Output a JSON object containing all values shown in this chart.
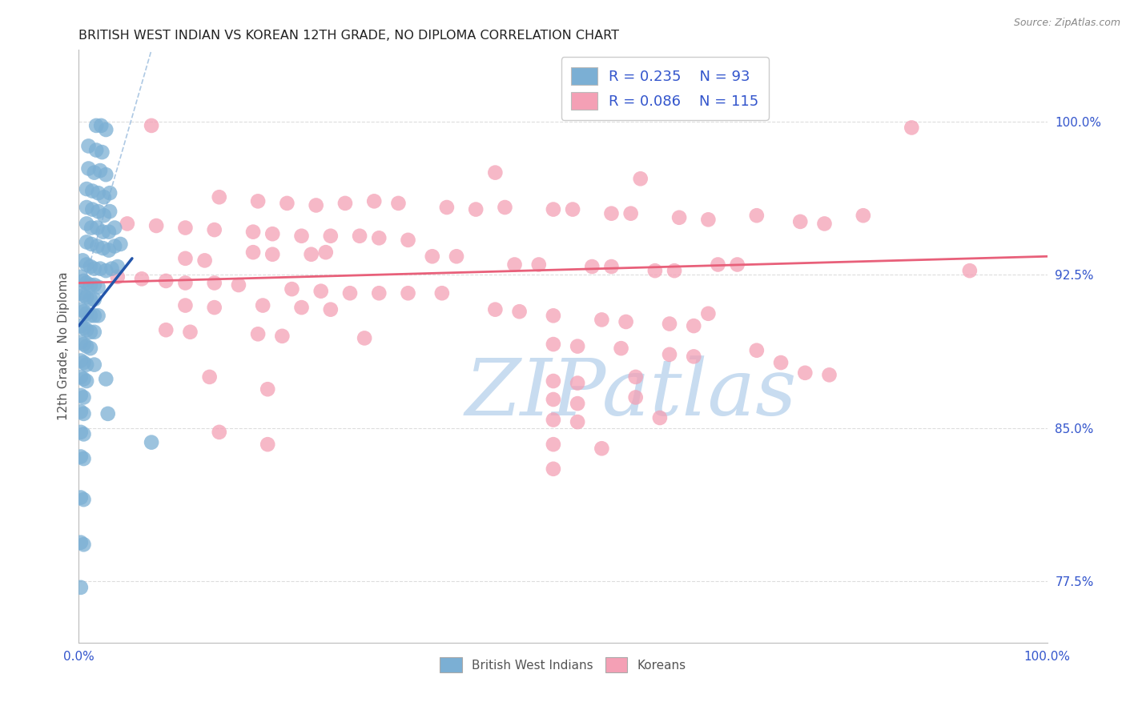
{
  "title": "BRITISH WEST INDIAN VS KOREAN 12TH GRADE, NO DIPLOMA CORRELATION CHART",
  "source": "Source: ZipAtlas.com",
  "ylabel": "12th Grade, No Diploma",
  "legend_R_blue": "0.235",
  "legend_N_blue": "93",
  "legend_R_pink": "0.086",
  "legend_N_pink": "115",
  "blue_color": "#7BAFD4",
  "blue_edge": "#7BAFD4",
  "pink_color": "#F4A0B5",
  "pink_edge": "#F4A0B5",
  "blue_line_color": "#2255AA",
  "pink_line_color": "#E8607A",
  "dash_line_color": "#99BBDD",
  "background_color": "#FFFFFF",
  "grid_color": "#DDDDDD",
  "tick_color": "#3355CC",
  "title_color": "#222222",
  "watermark_color": "#C8DCF0",
  "source_color": "#888888",
  "ylabel_color": "#555555",
  "xlim": [
    0.0,
    1.0
  ],
  "ylim": [
    0.745,
    1.035
  ],
  "ytick_vals": [
    0.775,
    0.85,
    0.925,
    1.0
  ],
  "ytick_labels": [
    "77.5%",
    "85.0%",
    "92.5%",
    "100.0%"
  ],
  "xtick_vals": [
    0.0,
    0.2,
    0.4,
    0.6,
    0.8,
    1.0
  ],
  "xtick_labels": [
    "0.0%",
    "",
    "",
    "",
    "",
    "100.0%"
  ],
  "blue_line_x": [
    0.0,
    0.055
  ],
  "blue_line_y": [
    0.9,
    0.933
  ],
  "pink_line_x": [
    0.0,
    1.0
  ],
  "pink_line_y": [
    0.921,
    0.934
  ],
  "dash_line_x": [
    0.0,
    0.075
  ],
  "dash_line_y": [
    0.912,
    1.035
  ],
  "blue_scatter": [
    [
      0.018,
      0.998
    ],
    [
      0.023,
      0.998
    ],
    [
      0.028,
      0.996
    ],
    [
      0.01,
      0.988
    ],
    [
      0.018,
      0.986
    ],
    [
      0.024,
      0.985
    ],
    [
      0.01,
      0.977
    ],
    [
      0.016,
      0.975
    ],
    [
      0.022,
      0.976
    ],
    [
      0.028,
      0.974
    ],
    [
      0.008,
      0.967
    ],
    [
      0.014,
      0.966
    ],
    [
      0.02,
      0.965
    ],
    [
      0.026,
      0.963
    ],
    [
      0.032,
      0.965
    ],
    [
      0.008,
      0.958
    ],
    [
      0.014,
      0.957
    ],
    [
      0.02,
      0.956
    ],
    [
      0.026,
      0.954
    ],
    [
      0.032,
      0.956
    ],
    [
      0.008,
      0.95
    ],
    [
      0.013,
      0.948
    ],
    [
      0.019,
      0.948
    ],
    [
      0.025,
      0.946
    ],
    [
      0.031,
      0.946
    ],
    [
      0.037,
      0.948
    ],
    [
      0.008,
      0.941
    ],
    [
      0.013,
      0.94
    ],
    [
      0.019,
      0.939
    ],
    [
      0.025,
      0.938
    ],
    [
      0.031,
      0.937
    ],
    [
      0.037,
      0.939
    ],
    [
      0.043,
      0.94
    ],
    [
      0.004,
      0.932
    ],
    [
      0.008,
      0.93
    ],
    [
      0.012,
      0.929
    ],
    [
      0.016,
      0.928
    ],
    [
      0.022,
      0.928
    ],
    [
      0.028,
      0.927
    ],
    [
      0.034,
      0.928
    ],
    [
      0.04,
      0.929
    ],
    [
      0.002,
      0.924
    ],
    [
      0.005,
      0.922
    ],
    [
      0.008,
      0.921
    ],
    [
      0.012,
      0.92
    ],
    [
      0.016,
      0.92
    ],
    [
      0.02,
      0.919
    ],
    [
      0.002,
      0.916
    ],
    [
      0.005,
      0.915
    ],
    [
      0.008,
      0.914
    ],
    [
      0.012,
      0.913
    ],
    [
      0.016,
      0.913
    ],
    [
      0.002,
      0.908
    ],
    [
      0.005,
      0.907
    ],
    [
      0.008,
      0.906
    ],
    [
      0.012,
      0.905
    ],
    [
      0.016,
      0.905
    ],
    [
      0.02,
      0.905
    ],
    [
      0.002,
      0.9
    ],
    [
      0.005,
      0.899
    ],
    [
      0.008,
      0.898
    ],
    [
      0.012,
      0.897
    ],
    [
      0.016,
      0.897
    ],
    [
      0.002,
      0.892
    ],
    [
      0.005,
      0.891
    ],
    [
      0.008,
      0.89
    ],
    [
      0.012,
      0.889
    ],
    [
      0.002,
      0.883
    ],
    [
      0.005,
      0.882
    ],
    [
      0.008,
      0.881
    ],
    [
      0.016,
      0.881
    ],
    [
      0.002,
      0.875
    ],
    [
      0.005,
      0.874
    ],
    [
      0.008,
      0.873
    ],
    [
      0.028,
      0.874
    ],
    [
      0.002,
      0.866
    ],
    [
      0.005,
      0.865
    ],
    [
      0.002,
      0.858
    ],
    [
      0.005,
      0.857
    ],
    [
      0.03,
      0.857
    ],
    [
      0.002,
      0.848
    ],
    [
      0.005,
      0.847
    ],
    [
      0.075,
      0.843
    ],
    [
      0.002,
      0.836
    ],
    [
      0.005,
      0.835
    ],
    [
      0.002,
      0.816
    ],
    [
      0.005,
      0.815
    ],
    [
      0.002,
      0.794
    ],
    [
      0.005,
      0.793
    ],
    [
      0.002,
      0.772
    ]
  ],
  "pink_scatter": [
    [
      0.075,
      0.998
    ],
    [
      0.86,
      0.997
    ],
    [
      0.43,
      0.975
    ],
    [
      0.58,
      0.972
    ],
    [
      0.145,
      0.963
    ],
    [
      0.185,
      0.961
    ],
    [
      0.215,
      0.96
    ],
    [
      0.245,
      0.959
    ],
    [
      0.275,
      0.96
    ],
    [
      0.305,
      0.961
    ],
    [
      0.33,
      0.96
    ],
    [
      0.38,
      0.958
    ],
    [
      0.41,
      0.957
    ],
    [
      0.44,
      0.958
    ],
    [
      0.49,
      0.957
    ],
    [
      0.51,
      0.957
    ],
    [
      0.55,
      0.955
    ],
    [
      0.57,
      0.955
    ],
    [
      0.62,
      0.953
    ],
    [
      0.65,
      0.952
    ],
    [
      0.7,
      0.954
    ],
    [
      0.745,
      0.951
    ],
    [
      0.77,
      0.95
    ],
    [
      0.81,
      0.954
    ],
    [
      0.05,
      0.95
    ],
    [
      0.08,
      0.949
    ],
    [
      0.11,
      0.948
    ],
    [
      0.14,
      0.947
    ],
    [
      0.18,
      0.946
    ],
    [
      0.2,
      0.945
    ],
    [
      0.23,
      0.944
    ],
    [
      0.26,
      0.944
    ],
    [
      0.29,
      0.944
    ],
    [
      0.31,
      0.943
    ],
    [
      0.34,
      0.942
    ],
    [
      0.18,
      0.936
    ],
    [
      0.2,
      0.935
    ],
    [
      0.24,
      0.935
    ],
    [
      0.255,
      0.936
    ],
    [
      0.11,
      0.933
    ],
    [
      0.13,
      0.932
    ],
    [
      0.365,
      0.934
    ],
    [
      0.39,
      0.934
    ],
    [
      0.45,
      0.93
    ],
    [
      0.475,
      0.93
    ],
    [
      0.53,
      0.929
    ],
    [
      0.55,
      0.929
    ],
    [
      0.595,
      0.927
    ],
    [
      0.615,
      0.927
    ],
    [
      0.66,
      0.93
    ],
    [
      0.68,
      0.93
    ],
    [
      0.04,
      0.924
    ],
    [
      0.065,
      0.923
    ],
    [
      0.09,
      0.922
    ],
    [
      0.11,
      0.921
    ],
    [
      0.14,
      0.921
    ],
    [
      0.165,
      0.92
    ],
    [
      0.22,
      0.918
    ],
    [
      0.25,
      0.917
    ],
    [
      0.28,
      0.916
    ],
    [
      0.31,
      0.916
    ],
    [
      0.34,
      0.916
    ],
    [
      0.375,
      0.916
    ],
    [
      0.11,
      0.91
    ],
    [
      0.14,
      0.909
    ],
    [
      0.19,
      0.91
    ],
    [
      0.23,
      0.909
    ],
    [
      0.26,
      0.908
    ],
    [
      0.43,
      0.908
    ],
    [
      0.455,
      0.907
    ],
    [
      0.49,
      0.905
    ],
    [
      0.54,
      0.903
    ],
    [
      0.565,
      0.902
    ],
    [
      0.61,
      0.901
    ],
    [
      0.635,
      0.9
    ],
    [
      0.65,
      0.906
    ],
    [
      0.09,
      0.898
    ],
    [
      0.115,
      0.897
    ],
    [
      0.185,
      0.896
    ],
    [
      0.21,
      0.895
    ],
    [
      0.295,
      0.894
    ],
    [
      0.49,
      0.891
    ],
    [
      0.515,
      0.89
    ],
    [
      0.56,
      0.889
    ],
    [
      0.61,
      0.886
    ],
    [
      0.635,
      0.885
    ],
    [
      0.7,
      0.888
    ],
    [
      0.725,
      0.882
    ],
    [
      0.75,
      0.877
    ],
    [
      0.775,
      0.876
    ],
    [
      0.135,
      0.875
    ],
    [
      0.49,
      0.873
    ],
    [
      0.515,
      0.872
    ],
    [
      0.575,
      0.875
    ],
    [
      0.195,
      0.869
    ],
    [
      0.49,
      0.864
    ],
    [
      0.515,
      0.862
    ],
    [
      0.575,
      0.865
    ],
    [
      0.49,
      0.854
    ],
    [
      0.515,
      0.853
    ],
    [
      0.6,
      0.855
    ],
    [
      0.145,
      0.848
    ],
    [
      0.195,
      0.842
    ],
    [
      0.49,
      0.842
    ],
    [
      0.54,
      0.84
    ],
    [
      0.49,
      0.83
    ],
    [
      0.92,
      0.927
    ]
  ]
}
